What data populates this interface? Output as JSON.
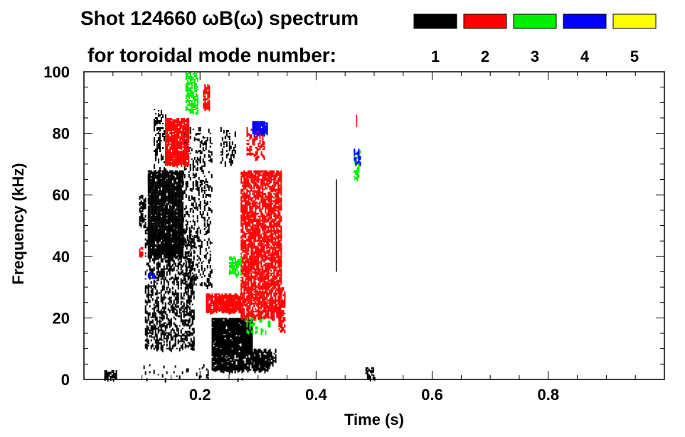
{
  "chart_data": {
    "type": "heatmap",
    "title_line1": "Shot 124660 ωB(ω) spectrum",
    "title_line2": "for toroidal mode number:",
    "xlabel": "Time (s)",
    "ylabel": "Frequency (kHz)",
    "xlim": [
      0.0,
      1.0
    ],
    "ylim": [
      0,
      100
    ],
    "x_ticks": [
      0.2,
      0.4,
      0.6,
      0.8
    ],
    "x_tick_labels": [
      "0.2",
      "0.4",
      "0.6",
      "0.8"
    ],
    "y_ticks": [
      0,
      20,
      40,
      60,
      80,
      100
    ],
    "y_tick_labels": [
      "0",
      "20",
      "40",
      "60",
      "80",
      "100"
    ],
    "legend": [
      {
        "n": "1",
        "color": "#000000"
      },
      {
        "n": "2",
        "color": "#ff0000"
      },
      {
        "n": "3",
        "color": "#00ee00"
      },
      {
        "n": "4",
        "color": "#0000ff"
      },
      {
        "n": "5",
        "color": "#ffff00"
      }
    ],
    "mode_colors": {
      "1": "#000000",
      "2": "#ff0000",
      "3": "#00ee00",
      "4": "#0000ff",
      "5": "#ffff00"
    },
    "regions": [
      {
        "mode": "1",
        "t": [
          0.095,
          0.105
        ],
        "f": [
          50,
          60
        ],
        "density": 0.5
      },
      {
        "mode": "1",
        "t": [
          0.105,
          0.19
        ],
        "f": [
          10,
          50
        ],
        "density": 0.32
      },
      {
        "mode": "1",
        "t": [
          0.11,
          0.17
        ],
        "f": [
          40,
          68
        ],
        "density": 0.85
      },
      {
        "mode": "1",
        "t": [
          0.12,
          0.14
        ],
        "f": [
          68,
          88
        ],
        "density": 0.25
      },
      {
        "mode": "1",
        "t": [
          0.17,
          0.22
        ],
        "f": [
          30,
          82
        ],
        "density": 0.18
      },
      {
        "mode": "1",
        "t": [
          0.22,
          0.29
        ],
        "f": [
          8,
          20
        ],
        "density": 0.92
      },
      {
        "mode": "1",
        "t": [
          0.22,
          0.32
        ],
        "f": [
          3,
          8
        ],
        "density": 0.7
      },
      {
        "mode": "1",
        "t": [
          0.29,
          0.33
        ],
        "f": [
          5,
          10
        ],
        "density": 0.55
      },
      {
        "mode": "1",
        "t": [
          0.235,
          0.26
        ],
        "f": [
          70,
          82
        ],
        "density": 0.2
      },
      {
        "mode": "1",
        "t": [
          0.1,
          0.28
        ],
        "f": [
          0,
          5
        ],
        "density": 0.04
      },
      {
        "mode": "1",
        "t": [
          0.035,
          0.055
        ],
        "f": [
          0,
          3
        ],
        "density": 0.45
      },
      {
        "mode": "1",
        "t": [
          0.485,
          0.5
        ],
        "f": [
          0,
          4
        ],
        "density": 0.35
      },
      {
        "mode": "2",
        "t": [
          0.14,
          0.18
        ],
        "f": [
          70,
          85
        ],
        "density": 0.75
      },
      {
        "mode": "2",
        "t": [
          0.205,
          0.215
        ],
        "f": [
          88,
          96
        ],
        "density": 0.6
      },
      {
        "mode": "2",
        "t": [
          0.21,
          0.27
        ],
        "f": [
          22,
          28
        ],
        "density": 0.85
      },
      {
        "mode": "2",
        "t": [
          0.27,
          0.34
        ],
        "f": [
          20,
          68
        ],
        "density": 0.62
      },
      {
        "mode": "2",
        "t": [
          0.28,
          0.31
        ],
        "f": [
          72,
          82
        ],
        "density": 0.3
      },
      {
        "mode": "2",
        "t": [
          0.335,
          0.345
        ],
        "f": [
          16,
          30
        ],
        "density": 0.5
      },
      {
        "mode": "2",
        "t": [
          0.095,
          0.1
        ],
        "f": [
          40,
          43
        ],
        "density": 0.6
      },
      {
        "mode": "3",
        "t": [
          0.175,
          0.195
        ],
        "f": [
          87,
          100
        ],
        "density": 0.5
      },
      {
        "mode": "3",
        "t": [
          0.25,
          0.27
        ],
        "f": [
          34,
          40
        ],
        "density": 0.5
      },
      {
        "mode": "3",
        "t": [
          0.28,
          0.32
        ],
        "f": [
          14,
          20
        ],
        "density": 0.2
      },
      {
        "mode": "3",
        "t": [
          0.465,
          0.475
        ],
        "f": [
          65,
          75
        ],
        "density": 0.3
      },
      {
        "mode": "4",
        "t": [
          0.29,
          0.315
        ],
        "f": [
          80,
          84
        ],
        "density": 0.9
      },
      {
        "mode": "4",
        "t": [
          0.465,
          0.475
        ],
        "f": [
          70,
          75
        ],
        "density": 0.5
      },
      {
        "mode": "4",
        "t": [
          0.11,
          0.12
        ],
        "f": [
          33,
          35
        ],
        "density": 0.4
      }
    ],
    "lines": [
      {
        "mode": "1",
        "t": 0.435,
        "f": [
          35,
          65
        ]
      },
      {
        "mode": "2",
        "t": 0.47,
        "f": [
          82,
          86
        ]
      }
    ]
  }
}
